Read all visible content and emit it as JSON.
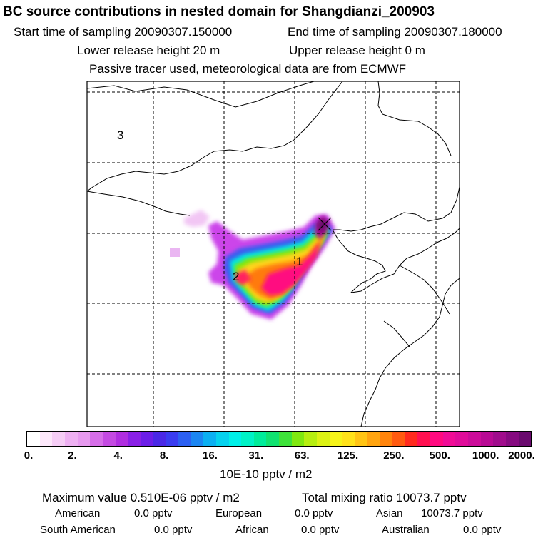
{
  "header": {
    "title": "BC  source contributions in nested domain for Shangdianzi_200903",
    "start_label": "Start time of sampling 20090307.150000",
    "end_label": "End time of sampling 20090307.180000",
    "lower_label": "Lower release height   20 m",
    "upper_label": "Upper release height    0 m",
    "tracer_label": "Passive tracer used, meteorological data are from ECMWF"
  },
  "map": {
    "region_labels": [
      "1",
      "2",
      "3"
    ],
    "receptor_marker": "cross-icon"
  },
  "colorbar": {
    "tick_labels": [
      "0.",
      "2.",
      "4.",
      "8.",
      "16.",
      "31.",
      "63.",
      "125.",
      "250.",
      "500.",
      "1000.",
      "2000."
    ],
    "unit": "10E-10 pptv / m2",
    "colors": [
      "#ffffff",
      "#fde8fb",
      "#f6cdf6",
      "#eeb0f2",
      "#e79aef",
      "#d66ee8",
      "#c44ae2",
      "#b02ee0",
      "#8a20e6",
      "#6c1ee8",
      "#4a28e6",
      "#3a3cf0",
      "#2c60f2",
      "#1c86f2",
      "#0cb0f2",
      "#06d2ee",
      "#00f0e8",
      "#00f2c6",
      "#00ec9a",
      "#10e270",
      "#3ee23a",
      "#80e810",
      "#b6ee10",
      "#dcf214",
      "#f6f41a",
      "#ffe21a",
      "#ffc414",
      "#ffa410",
      "#ff840c",
      "#ff5a10",
      "#ff2a1e",
      "#ff1050",
      "#ff0a80",
      "#f00c96",
      "#e00c9a",
      "#cc0c9a",
      "#b80a94",
      "#a00c8c",
      "#860a80",
      "#6a0a6e"
    ]
  },
  "stats": {
    "max_label": "Maximum value  0.510E-06 pptv / m2",
    "total_label": "Total mixing ratio    10073.7 pptv",
    "american_label": "American",
    "american_value": "0.0 pptv",
    "european_label": "European",
    "european_value": "0.0 pptv",
    "asian_label": "Asian",
    "asian_value": "10073.7 pptv",
    "south_american_label": "South American",
    "south_american_value": "0.0 pptv",
    "african_label": "African",
    "african_value": "0.0 pptv",
    "australian_label": "Australian",
    "australian_value": "0.0 pptv"
  }
}
